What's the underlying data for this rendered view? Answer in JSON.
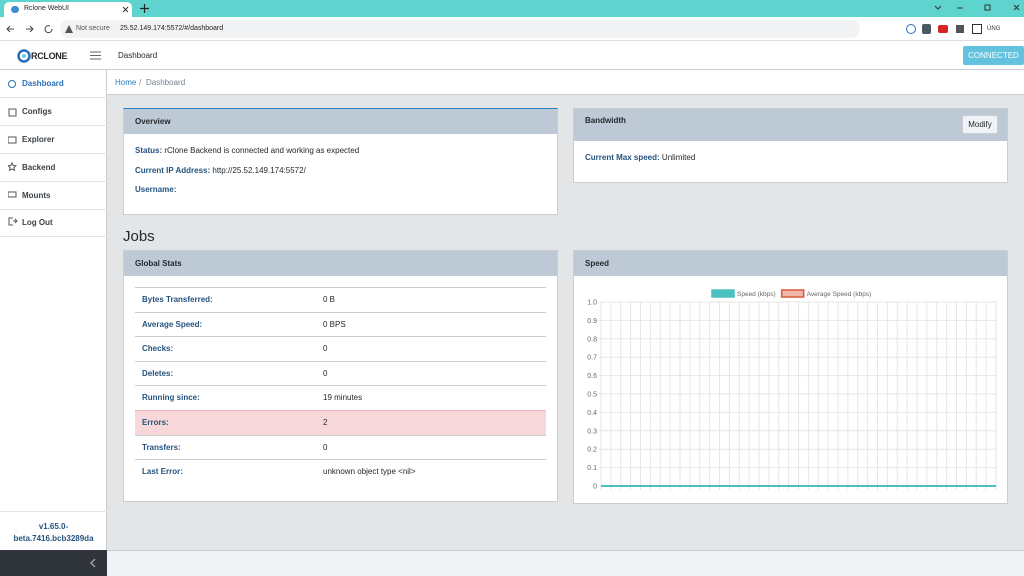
{
  "browser": {
    "tab_title": "Rclone WebUI",
    "security": "Not secure",
    "url": "25.52.149.174:5572/#/dashboard",
    "profile": "ÚNG"
  },
  "header": {
    "brand": "RCLONE",
    "page": "Dashboard",
    "status": "CONNECTED"
  },
  "sidebar": {
    "items": [
      "Dashboard",
      "Configs",
      "Explorer",
      "Backend",
      "Mounts",
      "Log Out"
    ],
    "version": "v1.65.0-beta.7416.bcb3289da"
  },
  "breadcrumb": {
    "items": [
      "Home",
      "Dashboard"
    ],
    "separator": "/"
  },
  "overview": {
    "title": "Overview",
    "rows": [
      {
        "label": "Status:",
        "value": "rClone Backend is connected and working as expected"
      },
      {
        "label": "Current IP Address:",
        "value": "http://25.52.149.174:5572/"
      },
      {
        "label": "Username:"
      }
    ]
  },
  "bandwidth": {
    "title": "Bandwidth",
    "button": "Modify",
    "label": "Current Max speed:",
    "value": "Unlimited"
  },
  "jobs": {
    "heading": "Jobs"
  },
  "global_stats": {
    "title": "Global Stats",
    "rows": [
      {
        "label": "Bytes Transferred:",
        "value": "0 B"
      },
      {
        "label": "Average Speed:",
        "value": "0 BPS"
      },
      {
        "label": "Checks:",
        "value": "0"
      },
      {
        "label": "Deletes:",
        "value": "0"
      },
      {
        "label": "Running since:",
        "value": "19 minutes"
      },
      {
        "label": "Errors:",
        "value": "2"
      },
      {
        "label": "Transfers:",
        "value": "0"
      },
      {
        "label": "Last Error:",
        "value": "unknown object type <nil>"
      }
    ]
  },
  "speed": {
    "title": "Speed"
  },
  "chart_data": {
    "type": "line",
    "categories": [
      null,
      null,
      null,
      null,
      null,
      null,
      null,
      null,
      null,
      null,
      null,
      null,
      null,
      null,
      null,
      null,
      null,
      null,
      null,
      null,
      null,
      null,
      null,
      null,
      null,
      null,
      null,
      null,
      null,
      null,
      null,
      null,
      null,
      null,
      null,
      null,
      null,
      null,
      null,
      null,
      null
    ],
    "series": [
      {
        "name": "Speed (kbps)",
        "color": "#4bc0c0",
        "values": [
          0,
          0,
          0,
          0,
          0,
          0,
          0,
          0,
          0,
          0,
          0,
          0,
          0,
          0,
          0,
          0,
          0,
          0,
          0,
          0,
          0,
          0,
          0,
          0,
          0,
          0,
          0,
          0,
          0,
          0,
          0,
          0,
          0,
          0,
          0,
          0,
          0,
          0,
          0,
          0,
          0
        ]
      },
      {
        "name": "Average Speed (kbps)",
        "color": "#e8866a",
        "values": [
          0,
          0,
          0,
          0,
          0,
          0,
          0,
          0,
          0,
          0,
          0,
          0,
          0,
          0,
          0,
          0,
          0,
          0,
          0,
          0,
          0,
          0,
          0,
          0,
          0,
          0,
          0,
          0,
          0,
          0,
          0,
          0,
          0,
          0,
          0,
          0,
          0,
          0,
          0,
          0,
          0
        ]
      }
    ],
    "ylim": [
      0,
      1
    ],
    "yticks": [
      0,
      0.1,
      0.2,
      0.3,
      0.4,
      0.5,
      0.6,
      0.7,
      0.8,
      0.9,
      {
        "value": 1,
        "label": "1.0"
      }
    ],
    "grid": true,
    "legend": "top"
  }
}
